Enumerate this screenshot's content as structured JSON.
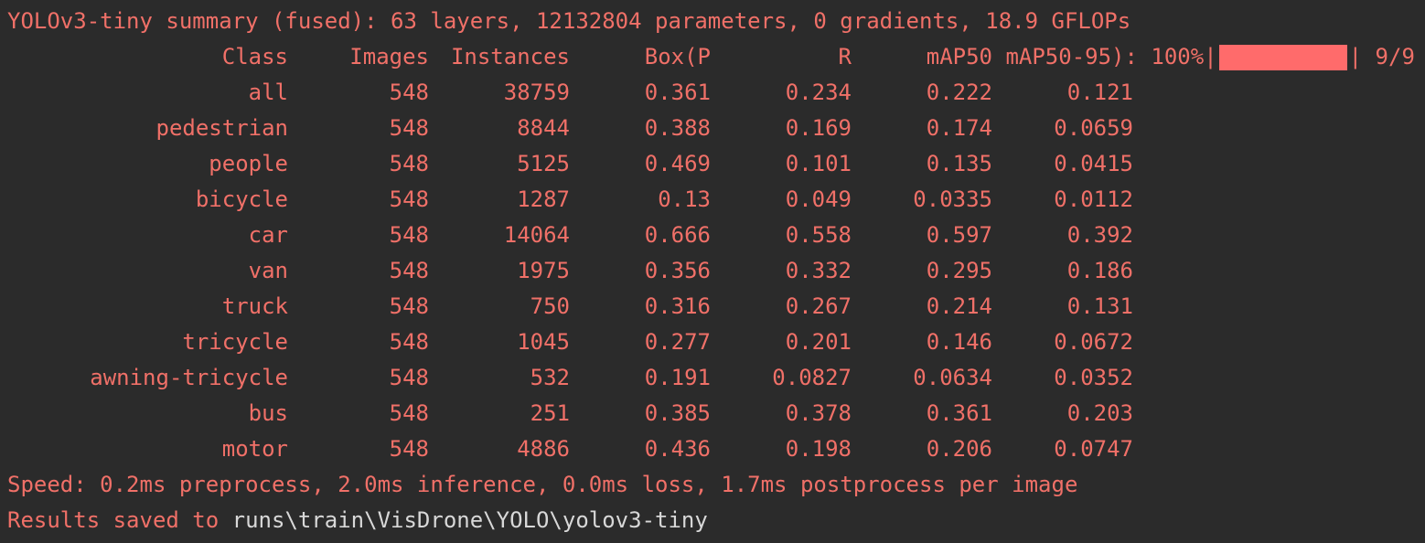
{
  "summary": "YOLOv3-tiny summary (fused): 63 layers, 12132804 parameters, 0 gradients, 18.9 GFLOPs",
  "header": {
    "class": "Class",
    "images": "Images",
    "instances": "Instances",
    "box_p": "Box(P",
    "r": "R",
    "map50": "mAP50",
    "map50_95_prefix": " mAP50-95): 100%|",
    "progress_suffix": "| 9/9",
    "progress_fraction": 1.0
  },
  "rows": [
    {
      "class": "all",
      "images": "548",
      "instances": "38759",
      "p": "0.361",
      "r": "0.234",
      "map50": "0.222",
      "map50_95": "0.121"
    },
    {
      "class": "pedestrian",
      "images": "548",
      "instances": "8844",
      "p": "0.388",
      "r": "0.169",
      "map50": "0.174",
      "map50_95": "0.0659"
    },
    {
      "class": "people",
      "images": "548",
      "instances": "5125",
      "p": "0.469",
      "r": "0.101",
      "map50": "0.135",
      "map50_95": "0.0415"
    },
    {
      "class": "bicycle",
      "images": "548",
      "instances": "1287",
      "p": "0.13",
      "r": "0.049",
      "map50": "0.0335",
      "map50_95": "0.0112"
    },
    {
      "class": "car",
      "images": "548",
      "instances": "14064",
      "p": "0.666",
      "r": "0.558",
      "map50": "0.597",
      "map50_95": "0.392"
    },
    {
      "class": "van",
      "images": "548",
      "instances": "1975",
      "p": "0.356",
      "r": "0.332",
      "map50": "0.295",
      "map50_95": "0.186"
    },
    {
      "class": "truck",
      "images": "548",
      "instances": "750",
      "p": "0.316",
      "r": "0.267",
      "map50": "0.214",
      "map50_95": "0.131"
    },
    {
      "class": "tricycle",
      "images": "548",
      "instances": "1045",
      "p": "0.277",
      "r": "0.201",
      "map50": "0.146",
      "map50_95": "0.0672"
    },
    {
      "class": "awning-tricycle",
      "images": "548",
      "instances": "532",
      "p": "0.191",
      "r": "0.0827",
      "map50": "0.0634",
      "map50_95": "0.0352"
    },
    {
      "class": "bus",
      "images": "548",
      "instances": "251",
      "p": "0.385",
      "r": "0.378",
      "map50": "0.361",
      "map50_95": "0.203"
    },
    {
      "class": "motor",
      "images": "548",
      "instances": "4886",
      "p": "0.436",
      "r": "0.198",
      "map50": "0.206",
      "map50_95": "0.0747"
    }
  ],
  "speed": "Speed: 0.2ms preprocess, 2.0ms inference, 0.0ms loss, 1.7ms postprocess per image",
  "results_prefix": "Results saved to ",
  "results_path": "runs\\train\\VisDrone\\YOLO\\yolov3-tiny",
  "colors": {
    "background": "#2b2b2b",
    "text": "#f07068",
    "progress_bar": "#ff6b6b",
    "path_text": "#d8d8d8"
  }
}
